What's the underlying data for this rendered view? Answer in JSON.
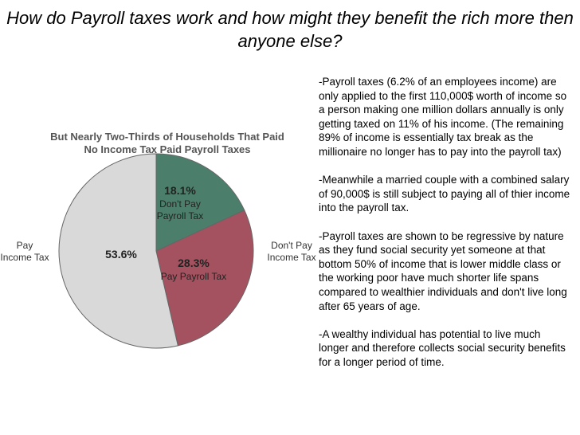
{
  "slide": {
    "title": "How do Payroll taxes work and how might they benefit the rich more then anyone else?",
    "paragraphs": [
      "-Payroll taxes (6.2% of an employees income) are only applied to the first 110,000$ worth of income so a person making one million dollars annually is only getting taxed on 11% of his income. (The remaining 89% of income is essentially tax break as the millionaire no longer has to pay into the payroll tax)",
      "-Meanwhile a married couple with a combined salary of 90,000$ is still subject to paying all of thier income into the payroll tax.",
      "-Payroll taxes are shown to be regressive by nature as they fund social security yet someone at that bottom 50% of income that is lower middle class or the working poor have much shorter life spans compared to wealthier individuals and don't live long after 65 years of age.",
      "-A wealthy individual has potential to live much longer and therefore collects social security benefits for a longer period of time."
    ]
  },
  "chart_data": {
    "type": "pie",
    "title": "But Nearly Two-Thirds of Households That Paid No Income Tax Paid Payroll Taxes",
    "categories": [
      "Don't Pay Payroll Tax",
      "Pay Payroll Tax",
      null
    ],
    "values": [
      18.1,
      28.3,
      53.6
    ],
    "value_labels": [
      "18.1%",
      "28.3%",
      "53.6%"
    ],
    "colors": [
      "#4b7f6b",
      "#a4525f",
      "#d9d9d9"
    ],
    "annotations": [
      "Pay Income Tax",
      "Don't Pay Income Tax"
    ]
  }
}
